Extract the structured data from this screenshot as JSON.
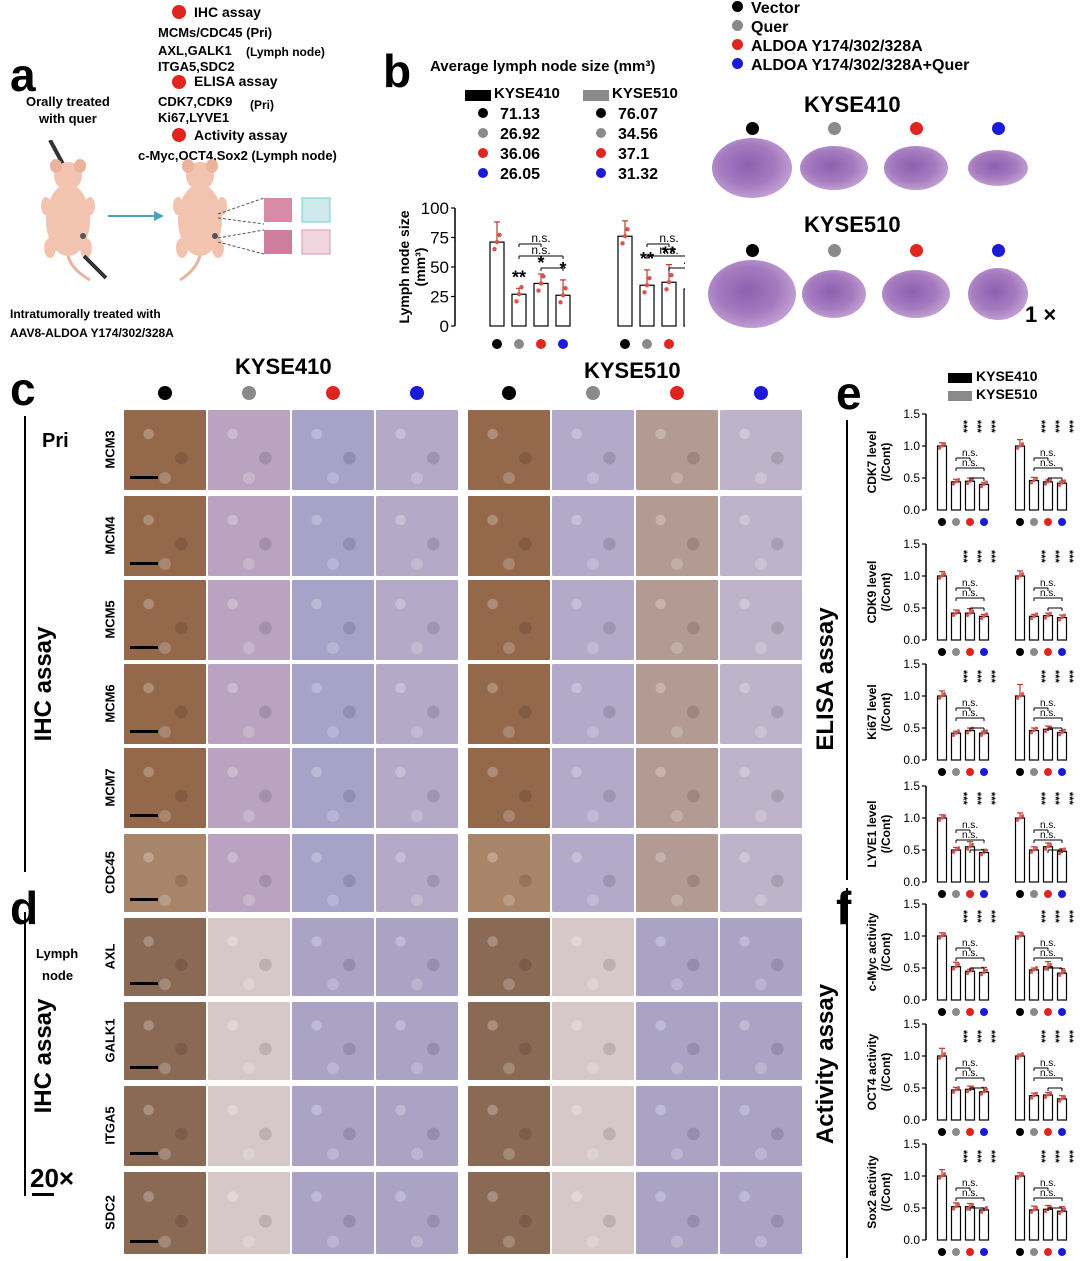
{
  "colors": {
    "vector": "#000000",
    "quer": "#8a8a8a",
    "aldoa": "#e0251e",
    "aldoa_quer": "#1a1ad8",
    "kyse410": "#000000",
    "kyse510": "#8a8a8a",
    "tissue_he": "#b98bc9"
  },
  "panels": {
    "a": "a",
    "b": "b",
    "c": "c",
    "d": "d",
    "e": "e",
    "f": "f"
  },
  "panel_a": {
    "ihc_title": "IHC assay",
    "ihc_line1": "MCMs/CDC45 (Pri)",
    "ihc_line2": "AXL,GALK1",
    "ihc_line2_suffix": "(Lymph  node)",
    "ihc_line3": "ITGA5,SDC2",
    "elisa_title": "ELISA assay",
    "elisa_line1": "CDK7,CDK9",
    "elisa_line1_suffix": "(Pri)",
    "elisa_line2": "Ki67,LYVE1",
    "activity_title": "Activity assay",
    "activity_line1": "c-Myc,OCT4,Sox2 (Lymph  node)",
    "oral": "Orally treated\nwith quer",
    "intra1": "Intratumorally treated with",
    "intra2": "AAV8-ALDOA Y174/302/328A"
  },
  "legend": [
    {
      "label": "Vector",
      "color": "#000000"
    },
    {
      "label": "Quer",
      "color": "#8a8a8a"
    },
    {
      "label": "ALDOA Y174/302/328A",
      "color": "#e0251e"
    },
    {
      "label": "ALDOA Y174/302/328A+Quer",
      "color": "#1a1ad8"
    }
  ],
  "panel_b": {
    "title": "Average lymph node size (mm³)",
    "kyse410_label": "KYSE410",
    "kyse510_label": "KYSE510",
    "kyse410_vals": [
      "71.13",
      "26.92",
      "36.06",
      "26.05"
    ],
    "kyse510_vals": [
      "76.07",
      "34.56",
      "37.1",
      "31.32"
    ],
    "ylabel": "Lymph node size",
    "ylabel2": "(mm³)",
    "he_kyse410": "KYSE410",
    "he_kyse510": "KYSE510",
    "mag": "1",
    "mag_x": "×"
  },
  "panel_c": {
    "kyse410": "KYSE410",
    "kyse510": "KYSE510",
    "pri": "Pri",
    "side": "IHC assay",
    "rows": [
      "MCM3",
      "MCM4",
      "MCM5",
      "MCM6",
      "MCM7",
      "CDC45"
    ]
  },
  "panel_d": {
    "lymph1": "Lymph",
    "lymph2": "node",
    "side": "IHC assay",
    "rows": [
      "AXL",
      "GALK1",
      "ITGA5",
      "SDC2"
    ],
    "mag": "20",
    "mag_x": "×"
  },
  "panel_e": {
    "leg410": "KYSE410",
    "leg510": "KYSE510",
    "side": "ELISA assay"
  },
  "panel_f": {
    "side": "Activity assay"
  },
  "stats": {
    "ns": "n.s.",
    "s1": "*",
    "s2": "**",
    "s3": "***"
  },
  "chart_data": [
    {
      "type": "bar",
      "ylabel": "Lymph node size (mm³)",
      "ylim": [
        0,
        100
      ],
      "yticks": [
        "0",
        "25",
        "50",
        "75",
        "100"
      ],
      "groups": [
        "KYSE410",
        "KYSE510"
      ],
      "categories": [
        "Vector",
        "Quer",
        "ALDOA Y174/302/328A",
        "ALDOA Y174/302/328A+Quer"
      ],
      "series": [
        {
          "name": "KYSE410",
          "values": [
            71.13,
            26.92,
            36.06,
            26.05
          ],
          "err": [
            17,
            5,
            8,
            13
          ],
          "sig": [
            "",
            "**",
            "*",
            "*"
          ]
        },
        {
          "name": "KYSE510",
          "values": [
            76.07,
            34.56,
            37.1,
            31.32
          ],
          "err": [
            13,
            13,
            15,
            9
          ],
          "sig": [
            "",
            "**",
            "**",
            "**"
          ]
        }
      ]
    },
    {
      "type": "bar",
      "ylabel": "CDK7 level",
      "ylabel2": "(/Cont)",
      "ylim": [
        0,
        1.5
      ],
      "yticks": [
        "0.0",
        "0.5",
        "1.0",
        "1.5"
      ],
      "groups": [
        "KYSE410",
        "KYSE510"
      ],
      "categories": [
        "Vector",
        "Quer",
        "ALDOA Y174/302/328A",
        "ALDOA Y174/302/328A+Quer"
      ],
      "series": [
        {
          "name": "KYSE410",
          "values": [
            1.0,
            0.44,
            0.45,
            0.4
          ],
          "err": [
            0.05,
            0.04,
            0.05,
            0.03
          ]
        },
        {
          "name": "KYSE510",
          "values": [
            1.0,
            0.46,
            0.44,
            0.42
          ],
          "err": [
            0.1,
            0.05,
            0.03,
            0.03
          ]
        }
      ]
    },
    {
      "type": "bar",
      "ylabel": "CDK9 level",
      "ylabel2": "(/Cont)",
      "ylim": [
        0,
        1.5
      ],
      "yticks": [
        "0.0",
        "0.5",
        "1.0",
        "1.5"
      ],
      "groups": [
        "KYSE410",
        "KYSE510"
      ],
      "categories": [
        "Vector",
        "Quer",
        "ALDOA Y174/302/328A",
        "ALDOA Y174/302/328A+Quer"
      ],
      "series": [
        {
          "name": "KYSE410",
          "values": [
            1.0,
            0.42,
            0.42,
            0.37
          ],
          "err": [
            0.07,
            0.05,
            0.07,
            0.03
          ]
        },
        {
          "name": "KYSE510",
          "values": [
            1.0,
            0.37,
            0.38,
            0.35
          ],
          "err": [
            0.08,
            0.03,
            0.04,
            0.04
          ]
        }
      ]
    },
    {
      "type": "bar",
      "ylabel": "Ki67 level",
      "ylabel2": "(/Cont)",
      "ylim": [
        0,
        1.5
      ],
      "yticks": [
        "0.0",
        "0.5",
        "1.0",
        "1.5"
      ],
      "groups": [
        "KYSE410",
        "KYSE510"
      ],
      "categories": [
        "Vector",
        "Quer",
        "ALDOA Y174/302/328A",
        "ALDOA Y174/302/328A+Quer"
      ],
      "series": [
        {
          "name": "KYSE410",
          "values": [
            1.0,
            0.42,
            0.46,
            0.42
          ],
          "err": [
            0.08,
            0.03,
            0.04,
            0.03
          ]
        },
        {
          "name": "KYSE510",
          "values": [
            1.0,
            0.46,
            0.48,
            0.43
          ],
          "err": [
            0.18,
            0.04,
            0.05,
            0.03
          ]
        }
      ]
    },
    {
      "type": "bar",
      "ylabel": "LYVE1 level",
      "ylabel2": "(/Cont)",
      "ylim": [
        0,
        1.5
      ],
      "yticks": [
        "0.0",
        "0.5",
        "1.0",
        "1.5"
      ],
      "groups": [
        "KYSE410",
        "KYSE510"
      ],
      "categories": [
        "Vector",
        "Quer",
        "ALDOA Y174/302/328A",
        "ALDOA Y174/302/328A+Quer"
      ],
      "series": [
        {
          "name": "KYSE410",
          "values": [
            1.0,
            0.5,
            0.55,
            0.46
          ],
          "err": [
            0.05,
            0.04,
            0.08,
            0.05
          ]
        },
        {
          "name": "KYSE510",
          "values": [
            1.0,
            0.5,
            0.55,
            0.48
          ],
          "err": [
            0.08,
            0.05,
            0.06,
            0.04
          ]
        }
      ]
    },
    {
      "type": "bar",
      "ylabel": "c-Myc activity",
      "ylabel2": "(/Cont)",
      "ylim": [
        0,
        1.5
      ],
      "yticks": [
        "0.0",
        "0.5",
        "1.0",
        "1.5"
      ],
      "groups": [
        "KYSE410",
        "KYSE510"
      ],
      "categories": [
        "Vector",
        "Quer",
        "ALDOA Y174/302/328A",
        "ALDOA Y174/302/328A+Quer"
      ],
      "series": [
        {
          "name": "KYSE410",
          "values": [
            1.0,
            0.52,
            0.45,
            0.43
          ],
          "err": [
            0.05,
            0.07,
            0.03,
            0.08
          ]
        },
        {
          "name": "KYSE510",
          "values": [
            1.0,
            0.47,
            0.52,
            0.42
          ],
          "err": [
            0.06,
            0.03,
            0.08,
            0.07
          ]
        }
      ]
    },
    {
      "type": "bar",
      "ylabel": "OCT4 activity",
      "ylabel2": "(/Cont)",
      "ylim": [
        0,
        1.5
      ],
      "yticks": [
        "0.0",
        "0.5",
        "1.0",
        "1.5"
      ],
      "groups": [
        "KYSE410",
        "KYSE510"
      ],
      "categories": [
        "Vector",
        "Quer",
        "ALDOA Y174/302/328A",
        "ALDOA Y174/302/328A+Quer"
      ],
      "series": [
        {
          "name": "KYSE410",
          "values": [
            1.0,
            0.47,
            0.48,
            0.44
          ],
          "err": [
            0.12,
            0.04,
            0.05,
            0.07
          ]
        },
        {
          "name": "KYSE510",
          "values": [
            1.0,
            0.38,
            0.39,
            0.33
          ],
          "err": [
            0.03,
            0.04,
            0.04,
            0.05
          ]
        }
      ]
    },
    {
      "type": "bar",
      "ylabel": "Sox2 activity",
      "ylabel2": "(/Cont)",
      "ylim": [
        0,
        1.5
      ],
      "yticks": [
        "0.0",
        "0.5",
        "1.0",
        "1.5"
      ],
      "groups": [
        "KYSE410",
        "KYSE510"
      ],
      "categories": [
        "Vector",
        "Quer",
        "ALDOA Y174/302/328A",
        "ALDOA Y174/302/328A+Quer"
      ],
      "series": [
        {
          "name": "KYSE410",
          "values": [
            1.0,
            0.52,
            0.52,
            0.47
          ],
          "err": [
            0.1,
            0.06,
            0.05,
            0.03
          ]
        },
        {
          "name": "KYSE510",
          "values": [
            1.0,
            0.47,
            0.48,
            0.45
          ],
          "err": [
            0.05,
            0.06,
            0.06,
            0.07
          ]
        }
      ]
    }
  ]
}
